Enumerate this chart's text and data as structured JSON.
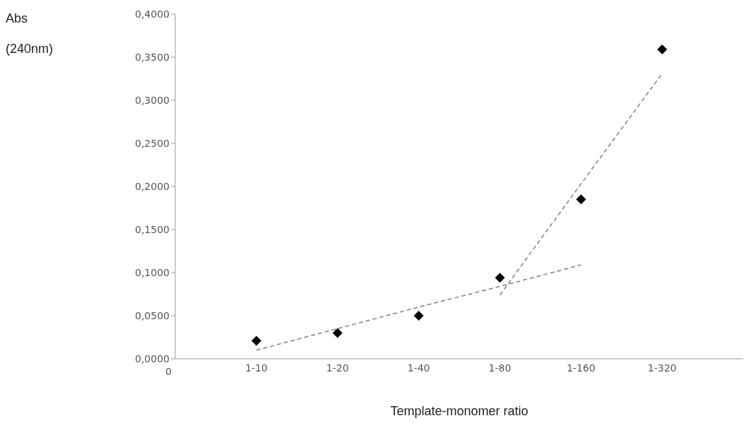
{
  "chart_data": {
    "type": "scatter",
    "xlabel": "Template-monomer ratio",
    "ylabel": "Abs (240nm)",
    "annotations": [
      "0"
    ],
    "categories": [
      "1-10",
      "1-20",
      "1-40",
      "1-80",
      "1-160",
      "1-320"
    ],
    "ylim": [
      0,
      0.4
    ],
    "yticks": [
      {
        "value": 0,
        "label": "0,0000"
      },
      {
        "value": 0.05,
        "label": "0,0500"
      },
      {
        "value": 0.1,
        "label": "0,1000"
      },
      {
        "value": 0.15,
        "label": "0,1500"
      },
      {
        "value": 0.2,
        "label": "0,2000"
      },
      {
        "value": 0.25,
        "label": "0,2500"
      },
      {
        "value": 0.3,
        "label": "0,3000"
      },
      {
        "value": 0.35,
        "label": "0,3500"
      },
      {
        "value": 0.4,
        "label": "0,4000"
      }
    ],
    "grid": false,
    "legend": false,
    "series": [
      {
        "color": "#000000",
        "marker": "diamond",
        "values": [
          0.021,
          0.03,
          0.05,
          0.094,
          0.185,
          0.359
        ]
      },
      {
        "type": "line",
        "color": "#808080",
        "marker": "none",
        "line_style": "dashed",
        "values": [
          0.01,
          0.035,
          0.06,
          0.084,
          0.109,
          null
        ]
      },
      {
        "type": "line",
        "color": "#808080",
        "marker": "none",
        "line_style": "dashed",
        "values": [
          null,
          null,
          null,
          0.074,
          0.203,
          0.331
        ]
      }
    ]
  }
}
